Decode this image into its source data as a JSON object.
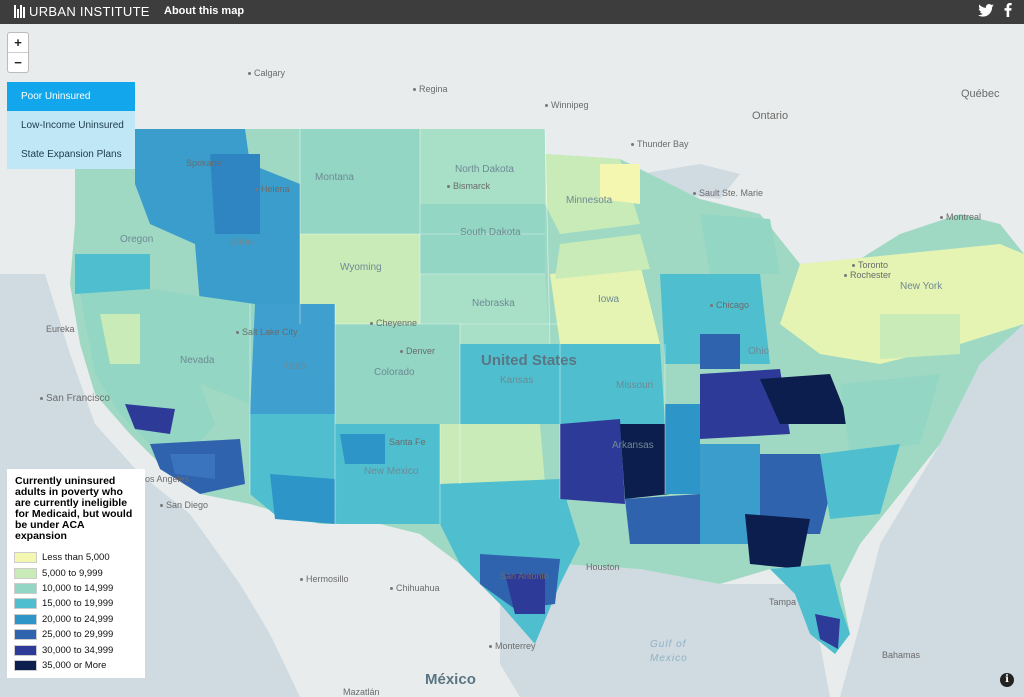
{
  "header": {
    "brand": "URBAN INSTITUTE",
    "about": "About this map",
    "icons": [
      "twitter-icon",
      "facebook-icon"
    ]
  },
  "zoom": {
    "in": "+",
    "out": "−"
  },
  "layers": [
    {
      "label": "Poor Uninsured",
      "active": true
    },
    {
      "label": "Low-Income Uninsured",
      "active": false
    },
    {
      "label": "State Expansion Plans",
      "active": false
    }
  ],
  "legend": {
    "title": "Currently uninsured adults in poverty who are currently ineligible for Medicaid, but would be under ACA expansion",
    "items": [
      {
        "label": "Less than 5,000",
        "color": "#f3f7b0"
      },
      {
        "label": "5,000 to 9,999",
        "color": "#c9ebb8"
      },
      {
        "label": "10,000 to 14,999",
        "color": "#93d6c3"
      },
      {
        "label": "15,000 to 19,999",
        "color": "#4fbfcf"
      },
      {
        "label": "20,000 to 24,999",
        "color": "#2e95c8"
      },
      {
        "label": "25,000 to 29,999",
        "color": "#2f63ad"
      },
      {
        "label": "30,000 to 34,999",
        "color": "#2e3a98"
      },
      {
        "label": "35,000 or More",
        "color": "#0c1e4e"
      }
    ]
  },
  "map_labels": {
    "countries": [
      "United States",
      "México"
    ],
    "seas": [
      "Gulf of Mexico"
    ],
    "states": [
      "North Dakota",
      "South Dakota",
      "Nebraska",
      "Kansas",
      "Montana",
      "Wyoming",
      "Nevada",
      "Utah",
      "Colorado",
      "New Mexico",
      "Idaho",
      "Oregon",
      "Iowa",
      "Minnesota",
      "Missouri",
      "Ohio",
      "New York",
      "Arkansas"
    ],
    "cities": [
      "Calgary",
      "Regina",
      "Winnipeg",
      "Ontario",
      "Québec",
      "Thunder Bay",
      "Sault Ste. Marie",
      "Montreal",
      "Toronto",
      "Rochester",
      "Chicago",
      "Helena",
      "Bismarck",
      "Cheyenne",
      "Salt Lake City",
      "Denver",
      "Eureka",
      "San Francisco",
      "Los Angeles",
      "San Diego",
      "Hermosillo",
      "Chihuahua",
      "Monterrey",
      "San Antonio",
      "Houston",
      "Tampa",
      "Mazatlán",
      "Bahamas",
      "Spokane",
      "Santa Fe"
    ]
  },
  "info_icon": "i"
}
